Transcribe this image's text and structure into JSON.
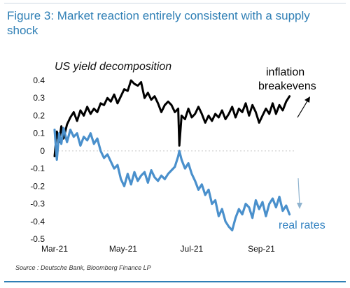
{
  "figure": {
    "title": "Figure 3: Market reaction entirely consistent with a supply shock",
    "source": "Source : Deutsche Bank, Bloomberg Finance LP"
  },
  "colors": {
    "title": "#2f7fb5",
    "breakevens": "#000000",
    "real_rates": "#4a90cc",
    "arrow": "#8fb3cf"
  },
  "chart_data": {
    "type": "line",
    "title": "US yield decomposition",
    "xlabel": "",
    "ylabel": "",
    "ylim": [
      -0.5,
      0.4
    ],
    "yticks": [
      0.4,
      0.3,
      0.2,
      0.1,
      0,
      -0.1,
      -0.2,
      -0.3,
      -0.4,
      -0.5
    ],
    "yticklabels": [
      "0.4",
      "0.3",
      "0.2",
      "0.1",
      "0",
      "-0.1",
      "-0.2",
      "-0.3",
      "-0.4",
      "-0.5"
    ],
    "xlim": [
      "2021-03-01",
      "2021-09-30"
    ],
    "xticks": [
      "2021-03-01",
      "2021-05-01",
      "2021-07-01",
      "2021-09-01"
    ],
    "xticklabels": [
      "Mar-21",
      "May-21",
      "Jul-21",
      "Sep-21"
    ],
    "annotations": [
      {
        "text": "inflation",
        "series": "inflation breakevens"
      },
      {
        "text": "breakevens",
        "series": "inflation breakevens"
      },
      {
        "text": "real rates",
        "series": "real rates"
      }
    ],
    "series": [
      {
        "name": "inflation breakevens",
        "color": "#000000",
        "x": [
          "2021-03-01",
          "2021-03-03",
          "2021-03-05",
          "2021-03-07",
          "2021-03-09",
          "2021-03-12",
          "2021-03-15",
          "2021-03-18",
          "2021-03-21",
          "2021-03-24",
          "2021-03-27",
          "2021-03-30",
          "2021-04-02",
          "2021-04-05",
          "2021-04-08",
          "2021-04-11",
          "2021-04-14",
          "2021-04-17",
          "2021-04-20",
          "2021-04-23",
          "2021-04-26",
          "2021-04-29",
          "2021-05-02",
          "2021-05-05",
          "2021-05-08",
          "2021-05-11",
          "2021-05-14",
          "2021-05-17",
          "2021-05-20",
          "2021-05-23",
          "2021-05-26",
          "2021-05-29",
          "2021-06-01",
          "2021-06-04",
          "2021-06-07",
          "2021-06-10",
          "2021-06-13",
          "2021-06-16",
          "2021-06-19",
          "2021-06-20",
          "2021-06-22",
          "2021-06-25",
          "2021-06-28",
          "2021-07-01",
          "2021-07-04",
          "2021-07-07",
          "2021-07-10",
          "2021-07-13",
          "2021-07-16",
          "2021-07-19",
          "2021-07-22",
          "2021-07-25",
          "2021-07-28",
          "2021-07-31",
          "2021-08-03",
          "2021-08-06",
          "2021-08-09",
          "2021-08-12",
          "2021-08-15",
          "2021-08-18",
          "2021-08-21",
          "2021-08-24",
          "2021-08-27",
          "2021-08-30",
          "2021-09-02",
          "2021-09-05",
          "2021-09-08",
          "2021-09-11",
          "2021-09-14",
          "2021-09-17",
          "2021-09-20",
          "2021-09-23",
          "2021-09-26"
        ],
        "values": [
          -0.03,
          0.11,
          0.05,
          0.14,
          0.07,
          0.15,
          0.19,
          0.22,
          0.17,
          0.23,
          0.2,
          0.25,
          0.21,
          0.24,
          0.22,
          0.27,
          0.26,
          0.3,
          0.28,
          0.32,
          0.27,
          0.31,
          0.35,
          0.34,
          0.4,
          0.38,
          0.37,
          0.39,
          0.3,
          0.33,
          0.29,
          0.31,
          0.27,
          0.22,
          0.26,
          0.28,
          0.26,
          0.22,
          0.24,
          0.03,
          0.2,
          0.18,
          0.24,
          0.19,
          0.21,
          0.25,
          0.21,
          0.16,
          0.2,
          0.17,
          0.21,
          0.19,
          0.23,
          0.18,
          0.21,
          0.25,
          0.19,
          0.24,
          0.22,
          0.27,
          0.2,
          0.26,
          0.22,
          0.16,
          0.2,
          0.24,
          0.21,
          0.27,
          0.21,
          0.26,
          0.23,
          0.28,
          0.31
        ]
      },
      {
        "name": "real rates",
        "color": "#4a90cc",
        "x": [
          "2021-03-01",
          "2021-03-03",
          "2021-03-05",
          "2021-03-07",
          "2021-03-09",
          "2021-03-12",
          "2021-03-15",
          "2021-03-18",
          "2021-03-21",
          "2021-03-24",
          "2021-03-27",
          "2021-03-30",
          "2021-04-02",
          "2021-04-05",
          "2021-04-08",
          "2021-04-11",
          "2021-04-14",
          "2021-04-17",
          "2021-04-20",
          "2021-04-23",
          "2021-04-26",
          "2021-04-29",
          "2021-05-02",
          "2021-05-05",
          "2021-05-08",
          "2021-05-11",
          "2021-05-14",
          "2021-05-17",
          "2021-05-20",
          "2021-05-23",
          "2021-05-26",
          "2021-05-29",
          "2021-06-01",
          "2021-06-04",
          "2021-06-07",
          "2021-06-10",
          "2021-06-13",
          "2021-06-16",
          "2021-06-19",
          "2021-06-20",
          "2021-06-22",
          "2021-06-25",
          "2021-06-28",
          "2021-07-01",
          "2021-07-04",
          "2021-07-07",
          "2021-07-10",
          "2021-07-13",
          "2021-07-16",
          "2021-07-19",
          "2021-07-22",
          "2021-07-25",
          "2021-07-28",
          "2021-07-31",
          "2021-08-03",
          "2021-08-06",
          "2021-08-09",
          "2021-08-12",
          "2021-08-15",
          "2021-08-18",
          "2021-08-21",
          "2021-08-24",
          "2021-08-27",
          "2021-08-30",
          "2021-09-02",
          "2021-09-05",
          "2021-09-08",
          "2021-09-11",
          "2021-09-14",
          "2021-09-17",
          "2021-09-20",
          "2021-09-23",
          "2021-09-26"
        ],
        "values": [
          0.12,
          -0.05,
          0.1,
          0.04,
          0.13,
          0.05,
          0.12,
          0.08,
          0.1,
          0.03,
          0.08,
          0.06,
          0.1,
          0.04,
          0.07,
          0.0,
          -0.04,
          -0.02,
          -0.06,
          -0.1,
          -0.08,
          -0.16,
          -0.2,
          -0.13,
          -0.19,
          -0.12,
          -0.17,
          -0.14,
          -0.12,
          -0.18,
          -0.11,
          -0.15,
          -0.17,
          -0.14,
          -0.16,
          -0.13,
          -0.11,
          -0.09,
          -0.03,
          0.0,
          -0.05,
          -0.1,
          -0.07,
          -0.13,
          -0.17,
          -0.22,
          -0.19,
          -0.25,
          -0.22,
          -0.3,
          -0.28,
          -0.37,
          -0.33,
          -0.4,
          -0.43,
          -0.45,
          -0.38,
          -0.33,
          -0.36,
          -0.3,
          -0.32,
          -0.38,
          -0.28,
          -0.33,
          -0.29,
          -0.37,
          -0.3,
          -0.27,
          -0.32,
          -0.26,
          -0.34,
          -0.31,
          -0.36
        ]
      }
    ]
  }
}
